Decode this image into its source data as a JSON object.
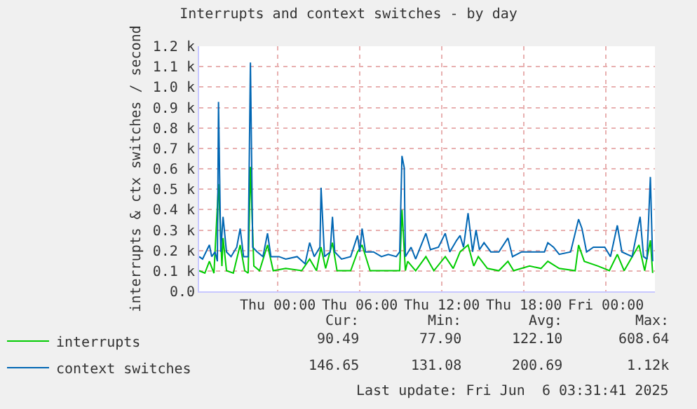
{
  "chart_data": {
    "type": "line",
    "title": "Interrupts and context switches - by day",
    "ylabel": "interrupts & ctx switches / second",
    "xlim": [
      "2025-06-04T18:15",
      "2025-06-06T03:35"
    ],
    "xticks": [
      {
        "value": "2025-06-05T00:00",
        "label": "Thu 00:00"
      },
      {
        "value": "2025-06-05T06:00",
        "label": "Thu 06:00"
      },
      {
        "value": "2025-06-05T12:00",
        "label": "Thu 12:00"
      },
      {
        "value": "2025-06-05T18:00",
        "label": "Thu 18:00"
      },
      {
        "value": "2025-06-06T00:00",
        "label": "Fri 00:00"
      }
    ],
    "ylim": [
      0,
      1200
    ],
    "yticks": [
      {
        "value": 0,
        "label": "0.0"
      },
      {
        "value": 100,
        "label": "0.1 k"
      },
      {
        "value": 200,
        "label": "0.2 k"
      },
      {
        "value": 300,
        "label": "0.3 k"
      },
      {
        "value": 400,
        "label": "0.4 k"
      },
      {
        "value": 500,
        "label": "0.5 k"
      },
      {
        "value": 600,
        "label": "0.6 k"
      },
      {
        "value": 700,
        "label": "0.7 k"
      },
      {
        "value": 800,
        "label": "0.8 k"
      },
      {
        "value": 900,
        "label": "0.9 k"
      },
      {
        "value": 1000,
        "label": "1.0 k"
      },
      {
        "value": 1100,
        "label": "1.1 k"
      },
      {
        "value": 1200,
        "label": "1.2 k"
      }
    ],
    "grid": true,
    "legend": "bottom left",
    "marker": "none",
    "line_style": "solid",
    "series": [
      {
        "name": "interrupts",
        "color": "#00cc00",
        "x": [
          "2025-06-04T18:15",
          "2025-06-04T18:40",
          "2025-06-04T19:00",
          "2025-06-04T19:20",
          "2025-06-04T19:40",
          "2025-06-04T19:55",
          "2025-06-04T20:00",
          "2025-06-04T20:15",
          "2025-06-04T20:45",
          "2025-06-04T21:15",
          "2025-06-04T21:35",
          "2025-06-04T21:50",
          "2025-06-04T22:00",
          "2025-06-04T22:15",
          "2025-06-04T22:40",
          "2025-06-04T23:15",
          "2025-06-04T23:40",
          "2025-06-05T00:35",
          "2025-06-05T01:45",
          "2025-06-05T02:20",
          "2025-06-05T02:50",
          "2025-06-05T03:10",
          "2025-06-05T03:30",
          "2025-06-05T04:00",
          "2025-06-05T04:20",
          "2025-06-05T05:20",
          "2025-06-05T05:50",
          "2025-06-05T06:10",
          "2025-06-05T06:45",
          "2025-06-05T08:05",
          "2025-06-05T08:55",
          "2025-06-05T09:05",
          "2025-06-05T09:20",
          "2025-06-05T09:30",
          "2025-06-05T10:05",
          "2025-06-05T10:50",
          "2025-06-05T11:25",
          "2025-06-05T12:15",
          "2025-06-05T12:50",
          "2025-06-05T13:20",
          "2025-06-05T13:55",
          "2025-06-05T14:20",
          "2025-06-05T14:40",
          "2025-06-05T15:20",
          "2025-06-05T16:10",
          "2025-06-05T16:50",
          "2025-06-05T17:15",
          "2025-06-05T18:25",
          "2025-06-05T19:15",
          "2025-06-05T19:45",
          "2025-06-05T20:35",
          "2025-06-05T21:45",
          "2025-06-05T22:00",
          "2025-06-05T22:25",
          "2025-06-05T23:25",
          "2025-06-06T00:15",
          "2025-06-06T00:50",
          "2025-06-06T01:20",
          "2025-06-06T02:25",
          "2025-06-06T02:50",
          "2025-06-06T03:15",
          "2025-06-06T03:25"
        ],
        "values": [
          101,
          89,
          147,
          89,
          525,
          124,
          261,
          101,
          89,
          227,
          101,
          89,
          609,
          124,
          101,
          227,
          101,
          112,
          101,
          158,
          101,
          216,
          112,
          238,
          101,
          101,
          193,
          227,
          101,
          101,
          101,
          399,
          101,
          147,
          101,
          170,
          101,
          170,
          112,
          193,
          227,
          124,
          170,
          112,
          101,
          147,
          101,
          124,
          112,
          147,
          112,
          101,
          227,
          147,
          124,
          101,
          181,
          101,
          227,
          101,
          250,
          90
        ]
      },
      {
        "name": "context switches",
        "color": "#0066b3",
        "x": [
          "2025-06-04T18:15",
          "2025-06-04T18:30",
          "2025-06-04T18:45",
          "2025-06-04T19:00",
          "2025-06-04T19:10",
          "2025-06-04T19:25",
          "2025-06-04T19:35",
          "2025-06-04T19:40",
          "2025-06-04T19:50",
          "2025-06-04T20:00",
          "2025-06-04T20:15",
          "2025-06-04T20:35",
          "2025-06-04T21:00",
          "2025-06-04T21:15",
          "2025-06-04T21:30",
          "2025-06-04T21:50",
          "2025-06-04T22:00",
          "2025-06-04T22:10",
          "2025-06-04T22:30",
          "2025-06-04T22:55",
          "2025-06-04T23:15",
          "2025-06-04T23:30",
          "2025-06-05T00:05",
          "2025-06-05T00:35",
          "2025-06-05T01:25",
          "2025-06-05T02:00",
          "2025-06-05T02:20",
          "2025-06-05T02:40",
          "2025-06-05T03:05",
          "2025-06-05T03:10",
          "2025-06-05T03:25",
          "2025-06-05T03:50",
          "2025-06-05T04:00",
          "2025-06-05T04:10",
          "2025-06-05T04:40",
          "2025-06-05T05:20",
          "2025-06-05T05:50",
          "2025-06-05T06:00",
          "2025-06-05T06:10",
          "2025-06-05T06:25",
          "2025-06-05T07:00",
          "2025-06-05T07:35",
          "2025-06-05T08:05",
          "2025-06-05T08:40",
          "2025-06-05T08:55",
          "2025-06-05T09:05",
          "2025-06-05T09:15",
          "2025-06-05T09:20",
          "2025-06-05T09:45",
          "2025-06-05T10:05",
          "2025-06-05T10:50",
          "2025-06-05T11:10",
          "2025-06-05T11:45",
          "2025-06-05T12:15",
          "2025-06-05T12:35",
          "2025-06-05T13:05",
          "2025-06-05T13:20",
          "2025-06-05T13:35",
          "2025-06-05T13:55",
          "2025-06-05T14:15",
          "2025-06-05T14:30",
          "2025-06-05T14:45",
          "2025-06-05T15:05",
          "2025-06-05T15:35",
          "2025-06-05T16:10",
          "2025-06-05T16:50",
          "2025-06-05T17:10",
          "2025-06-05T17:50",
          "2025-06-05T18:40",
          "2025-06-05T19:30",
          "2025-06-05T19:45",
          "2025-06-05T20:10",
          "2025-06-05T20:35",
          "2025-06-05T21:25",
          "2025-06-05T22:00",
          "2025-06-05T22:15",
          "2025-06-05T22:35",
          "2025-06-05T23:05",
          "2025-06-05T23:55",
          "2025-06-06T00:20",
          "2025-06-06T00:50",
          "2025-06-06T01:10",
          "2025-06-06T01:55",
          "2025-06-06T02:30",
          "2025-06-06T02:45",
          "2025-06-06T03:00",
          "2025-06-06T03:15",
          "2025-06-06T03:25"
        ],
        "values": [
          170,
          158,
          193,
          227,
          170,
          193,
          147,
          927,
          193,
          365,
          193,
          170,
          216,
          307,
          170,
          170,
          1120,
          216,
          193,
          170,
          284,
          170,
          170,
          158,
          170,
          135,
          238,
          170,
          216,
          507,
          170,
          193,
          365,
          193,
          158,
          170,
          273,
          193,
          307,
          193,
          193,
          170,
          181,
          170,
          193,
          663,
          605,
          170,
          216,
          158,
          284,
          204,
          216,
          284,
          193,
          250,
          273,
          216,
          383,
          193,
          300,
          204,
          238,
          193,
          193,
          261,
          170,
          193,
          193,
          193,
          238,
          216,
          181,
          193,
          353,
          307,
          193,
          216,
          216,
          170,
          323,
          193,
          170,
          365,
          170,
          158,
          560,
          147
        ]
      }
    ],
    "annotations": [
      "Cur:",
      "Min:",
      "Avg:",
      "Max:",
      "90.49",
      "77.90",
      "122.10",
      "608.64",
      "146.65",
      "131.08",
      "200.69",
      "1.12k",
      "Last update: Fri Jun  6 03:31:41 2025"
    ]
  }
}
